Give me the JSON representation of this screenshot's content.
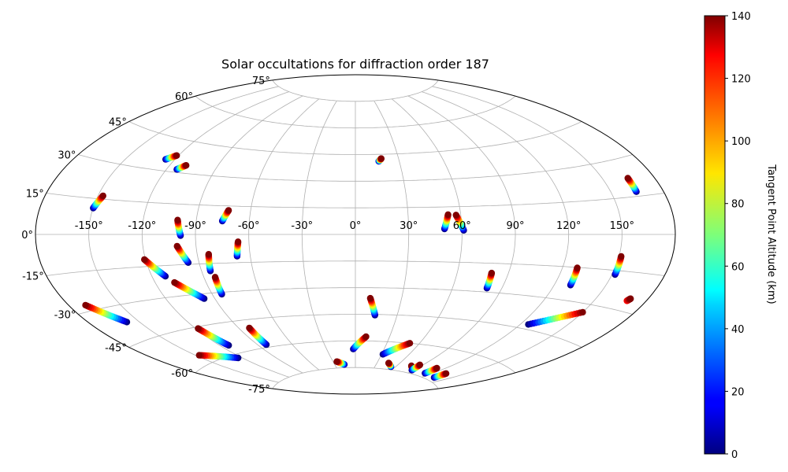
{
  "chart_data": {
    "type": "scatter",
    "projection": "aitoff",
    "title": "Solar occultations for diffraction order 187",
    "xlabel": "",
    "ylabel": "",
    "grid": true,
    "longitude_ticks": [
      "-150°",
      "-120°",
      "-90°",
      "-60°",
      "-30°",
      "0°",
      "30°",
      "60°",
      "90°",
      "120°",
      "150°"
    ],
    "latitude_ticks": [
      "75°",
      "60°",
      "45°",
      "30°",
      "15°",
      "0°",
      "-15°",
      "-30°",
      "-45°",
      "-60°",
      "-75°"
    ],
    "colorbar": {
      "label": "Tangent Point Altitude (km)",
      "colormap": "jet",
      "min": 0,
      "max": 140,
      "ticks": [
        "0",
        "20",
        "40",
        "60",
        "80",
        "100",
        "120",
        "140"
      ]
    },
    "series": [
      {
        "lon_start": -149.9,
        "lat_start": 11.0,
        "lon_end": -147.1,
        "lat_end": 16.4,
        "alt_start": 0,
        "alt_end": 140
      },
      {
        "lon_start": -125.7,
        "lat_start": 35.2,
        "lon_end": -121.2,
        "lat_end": 37.6,
        "alt_start": 0,
        "alt_end": 140
      },
      {
        "lon_start": -113.7,
        "lat_start": 31.4,
        "lon_end": -109.9,
        "lat_end": 33.8,
        "alt_start": 0,
        "alt_end": 140
      },
      {
        "lon_start": 16.0,
        "lat_start": 41.1,
        "lon_end": 18.0,
        "lat_end": 42.6,
        "alt_start": 0,
        "alt_end": 140
      },
      {
        "lon_start": 164.6,
        "lat_start": 16.8,
        "lon_end": 164.7,
        "lat_end": 22.3,
        "alt_start": 0,
        "alt_end": 140
      },
      {
        "lon_start": -75.3,
        "lat_start": 7.0,
        "lon_end": -72.6,
        "lat_end": 12.7,
        "alt_start": 0,
        "alt_end": 140
      },
      {
        "lon_start": 50.2,
        "lat_start": 3.0,
        "lon_end": 52.8,
        "lat_end": 10.8,
        "alt_start": 0,
        "alt_end": 140
      },
      {
        "lon_start": 61.0,
        "lat_start": 2.2,
        "lon_end": 57.3,
        "lat_end": 10.5,
        "alt_start": 0,
        "alt_end": 140
      },
      {
        "lon_start": -98.4,
        "lat_start": -0.6,
        "lon_end": -100.6,
        "lat_end": 7.1,
        "alt_start": 0,
        "alt_end": 140
      },
      {
        "lon_start": -96.2,
        "lat_start": -14.1,
        "lon_end": -100.7,
        "lat_end": -5.8,
        "alt_start": 0,
        "alt_end": 140
      },
      {
        "lon_start": -84.9,
        "lat_start": -18.8,
        "lon_end": -83.5,
        "lat_end": -10.2,
        "alt_start": 0,
        "alt_end": 140
      },
      {
        "lon_start": -67.5,
        "lat_start": -11.6,
        "lon_end": -66.1,
        "lat_end": -3.9,
        "alt_start": 0,
        "alt_end": 140
      },
      {
        "lon_start": -112.2,
        "lat_start": -20.1,
        "lon_end": -120.7,
        "lat_end": -11.7,
        "alt_start": 0,
        "alt_end": 140
      },
      {
        "lon_start": -96.6,
        "lat_start": -32.4,
        "lon_end": -108.7,
        "lat_end": -23.4,
        "alt_start": 0,
        "alt_end": 140
      },
      {
        "lon_start": -84.1,
        "lat_start": -31.0,
        "lon_end": -83.4,
        "lat_end": -22.1,
        "alt_start": 0,
        "alt_end": 140
      },
      {
        "lon_start": -157.6,
        "lat_start": -37.0,
        "lon_end": -170.4,
        "lat_end": -27.6,
        "alt_start": 0,
        "alt_end": 140
      },
      {
        "lon_start": 81.0,
        "lat_start": -28.0,
        "lon_end": 80.2,
        "lat_end": -20.1,
        "alt_start": 0,
        "alt_end": 140
      },
      {
        "lon_start": 129.5,
        "lat_start": -23.1,
        "lon_end": 128.5,
        "lat_end": -15.2,
        "alt_start": 0,
        "alt_end": 140
      },
      {
        "lon_start": 151.7,
        "lat_start": -16.7,
        "lon_end": 151.2,
        "lat_end": -9.1,
        "alt_start": 0,
        "alt_end": 140
      },
      {
        "lon_start": 14.1,
        "lat_start": -45.4,
        "lon_end": 9.7,
        "lat_end": -35.9,
        "alt_start": 0,
        "alt_end": 140
      },
      {
        "lon_start": -113.4,
        "lat_start": -55.7,
        "lon_end": -118.3,
        "lat_end": -45.8,
        "alt_start": 0,
        "alt_end": 140
      },
      {
        "lon_start": -123.4,
        "lat_start": -61.7,
        "lon_end": -147.6,
        "lat_end": -56.1,
        "alt_start": 0,
        "alt_end": 140
      },
      {
        "lon_start": -82.7,
        "lat_start": -58.6,
        "lon_end": -82.3,
        "lat_end": -49.3,
        "alt_start": 0,
        "alt_end": 140
      },
      {
        "lon_start": -2.2,
        "lat_start": -64.6,
        "lon_end": 9.4,
        "lat_end": -57.6,
        "alt_start": 0,
        "alt_end": 140
      },
      {
        "lon_start": -16.1,
        "lat_start": -73.2,
        "lon_end": -25.1,
        "lat_end": -71.4,
        "alt_start": 0,
        "alt_end": 140
      },
      {
        "lon_start": 31.5,
        "lat_start": -67.1,
        "lon_end": 51.3,
        "lat_end": -60.0,
        "alt_start": 0,
        "alt_end": 140
      },
      {
        "lon_start": 53.5,
        "lat_start": -73.4,
        "lon_end": 45.6,
        "lat_end": -71.6,
        "alt_start": 0,
        "alt_end": 140
      },
      {
        "lon_start": 87.8,
        "lat_start": -73.3,
        "lon_end": 78.5,
        "lat_end": -71.4,
        "alt_start": 0,
        "alt_end": 140
      },
      {
        "lon_start": 87.8,
        "lat_start": -73.3,
        "lon_end": 86.6,
        "lat_end": -70.2,
        "alt_start": 0,
        "alt_end": 140
      },
      {
        "lon_start": 111.8,
        "lat_start": -73.2,
        "lon_end": 111.5,
        "lat_end": -69.8,
        "alt_start": 0,
        "alt_end": 140
      },
      {
        "lon_start": 134.2,
        "lat_start": -73.4,
        "lon_end": 133.6,
        "lat_end": -70.5,
        "alt_start": 0,
        "alt_end": 140
      },
      {
        "lon_start": 125.3,
        "lat_start": -42.8,
        "lon_end": 150.0,
        "lat_end": -33.5,
        "alt_start": 0,
        "alt_end": 140
      },
      {
        "lon_start": 169.0,
        "lat_start": -26.0,
        "lon_end": 170.0,
        "lat_end": -25.0,
        "alt_start": 120,
        "alt_end": 140
      }
    ]
  }
}
